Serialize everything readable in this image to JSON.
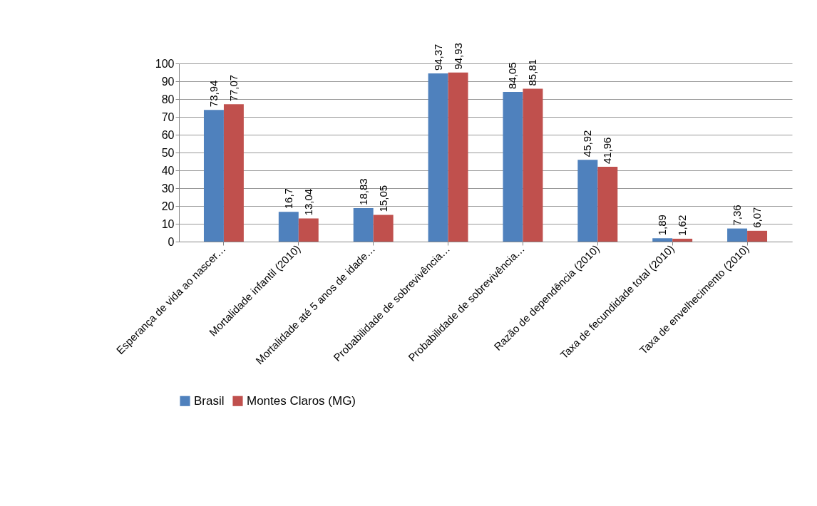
{
  "chart_data": {
    "type": "bar",
    "categories": [
      "Esperança de vida ao nascer…",
      "Mortalidade infantil (2010)",
      "Mortalidade até 5 anos de idade…",
      "Probabilidade de sobrevivência…",
      "Probabilidade de sobrevivência…",
      "Razão de dependência (2010)",
      "Taxa de fecundidade total (2010)",
      "Taxa de envelhecimento (2010)"
    ],
    "series": [
      {
        "name": "Brasil",
        "color": "#4f81bd",
        "values": [
          73.94,
          16.7,
          18.83,
          94.37,
          84.05,
          45.92,
          1.89,
          7.36
        ],
        "value_labels": [
          "73,94",
          "16,7",
          "18,83",
          "94,37",
          "84,05",
          "45,92",
          "1,89",
          "7,36"
        ]
      },
      {
        "name": "Montes Claros (MG)",
        "color": "#c0504d",
        "values": [
          77.07,
          13.04,
          15.05,
          94.93,
          85.81,
          41.96,
          1.62,
          6.07
        ],
        "value_labels": [
          "77,07",
          "13,04",
          "15,05",
          "94,93",
          "85,81",
          "41,96",
          "1,62",
          "6,07"
        ]
      }
    ],
    "ylim": [
      0,
      100
    ],
    "yticks": [
      0,
      10,
      20,
      30,
      40,
      50,
      60,
      70,
      80,
      90,
      100
    ],
    "grid": "y",
    "legend": "bottom"
  }
}
